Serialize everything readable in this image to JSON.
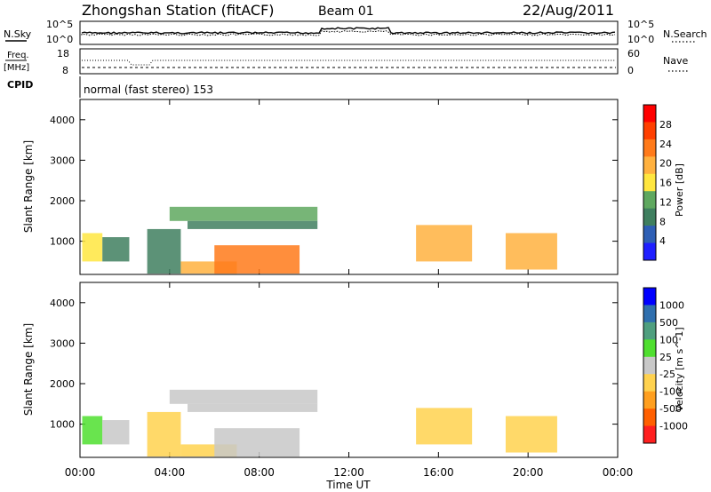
{
  "header": {
    "station": "Zhongshan Station (fitACF)",
    "beam": "Beam 01",
    "date": "22/Aug/2011"
  },
  "colors": {
    "power_scale": [
      "#1f1fff",
      "#2e5fb5",
      "#3f7f5f",
      "#5fa85f",
      "#ffe63f",
      "#ffb13f",
      "#ff7a1a",
      "#ff3f00",
      "#ff0000"
    ],
    "velocity_scale": [
      "#0000ff",
      "#2f6fae",
      "#4f9f7f",
      "#4fdf2f",
      "#c8c8c8",
      "#ffd24f",
      "#ff9f1f",
      "#ff5f00",
      "#ff1f1f"
    ]
  },
  "panels": {
    "nsky": {
      "left_label": "N.Sky",
      "left_ticks": [
        "10^5",
        "10^0"
      ],
      "right_ticks": [
        "10^5",
        "10^0"
      ],
      "right_label": "N.Search"
    },
    "freq": {
      "left_label": "Freq.",
      "left_unit": "[MHz]",
      "left_ticks": [
        "18",
        "8"
      ],
      "right_ticks": [
        "60",
        "0"
      ],
      "right_label": "Nave"
    },
    "cpid": {
      "label": "CPID",
      "text": "normal (fast stereo) 153"
    }
  },
  "chart_data": [
    {
      "type": "heatmap",
      "title": "",
      "xlabel": "Time UT",
      "ylabel": "Slant Range [km]",
      "x_ticks": [
        "00:00",
        "04:00",
        "08:00",
        "12:00",
        "16:00",
        "20:00",
        "00:00"
      ],
      "xlim_hours": [
        0,
        24
      ],
      "y_ticks": [
        "1000",
        "2000",
        "3000",
        "4000"
      ],
      "ylim": [
        180,
        4500
      ],
      "colorbar": {
        "label": "Power [dB]",
        "ticks": [
          "4",
          "8",
          "12",
          "16",
          "20",
          "24",
          "28"
        ],
        "range": [
          0,
          32
        ]
      },
      "regions": [
        {
          "t": [
            0.1,
            1.0
          ],
          "r": [
            500,
            1200
          ],
          "value": 16
        },
        {
          "t": [
            1.0,
            2.2
          ],
          "r": [
            500,
            1100
          ],
          "value": 10
        },
        {
          "t": [
            3.0,
            4.5
          ],
          "r": [
            200,
            1300
          ],
          "value": 10
        },
        {
          "t": [
            4.0,
            10.6
          ],
          "r": [
            1500,
            1850
          ],
          "value": 12
        },
        {
          "t": [
            4.8,
            10.6
          ],
          "r": [
            1300,
            1500
          ],
          "value": 8
        },
        {
          "t": [
            4.5,
            7.0
          ],
          "r": [
            200,
            500
          ],
          "value": 20
        },
        {
          "t": [
            6.0,
            9.8
          ],
          "r": [
            200,
            900
          ],
          "value": 24
        },
        {
          "t": [
            15.0,
            17.5
          ],
          "r": [
            500,
            1400
          ],
          "value": 20
        },
        {
          "t": [
            19.0,
            21.3
          ],
          "r": [
            300,
            1200
          ],
          "value": 20
        }
      ]
    },
    {
      "type": "heatmap",
      "title": "",
      "xlabel": "Time UT",
      "ylabel": "Slant Range [km]",
      "x_ticks": [
        "00:00",
        "04:00",
        "08:00",
        "12:00",
        "16:00",
        "20:00",
        "00:00"
      ],
      "xlim_hours": [
        0,
        24
      ],
      "y_ticks": [
        "1000",
        "2000",
        "3000",
        "4000"
      ],
      "ylim": [
        180,
        4500
      ],
      "colorbar": {
        "label": "Velocity [m s^-1]",
        "ticks": [
          "1000",
          "500",
          "100",
          "25",
          "-25",
          "-100",
          "-500",
          "-1000"
        ],
        "range": [
          -1200,
          1200
        ]
      },
      "regions": [
        {
          "t": [
            0.1,
            1.0
          ],
          "r": [
            500,
            1200
          ],
          "value": 300
        },
        {
          "t": [
            1.0,
            2.2
          ],
          "r": [
            500,
            1100
          ],
          "value": -80
        },
        {
          "t": [
            3.0,
            4.5
          ],
          "r": [
            200,
            1300
          ],
          "value": -200
        },
        {
          "t": [
            4.0,
            10.6
          ],
          "r": [
            1500,
            1850
          ],
          "value": 0
        },
        {
          "t": [
            4.8,
            10.6
          ],
          "r": [
            1300,
            1500
          ],
          "value": -60
        },
        {
          "t": [
            4.5,
            7.0
          ],
          "r": [
            200,
            500
          ],
          "value": -300
        },
        {
          "t": [
            6.0,
            9.8
          ],
          "r": [
            200,
            900
          ],
          "value": 120
        },
        {
          "t": [
            15.0,
            17.5
          ],
          "r": [
            500,
            1400
          ],
          "value": -150
        },
        {
          "t": [
            19.0,
            21.3
          ],
          "r": [
            300,
            1200
          ],
          "value": -400
        }
      ]
    }
  ]
}
